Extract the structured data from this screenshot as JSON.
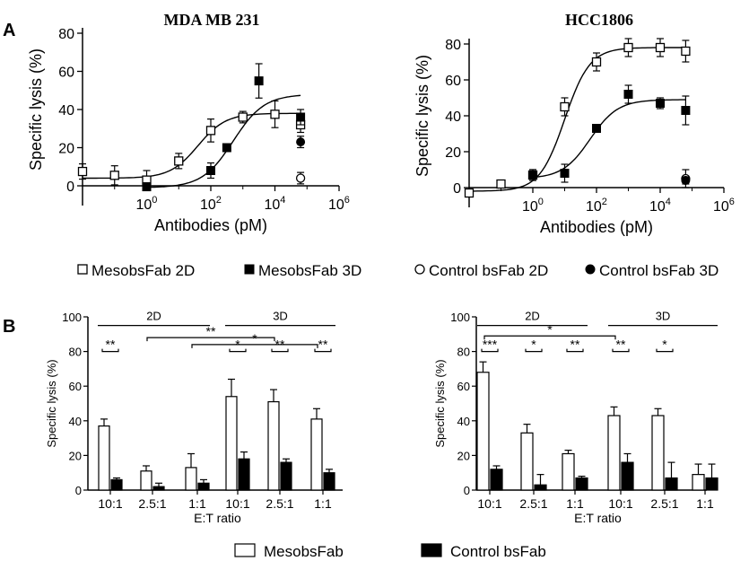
{
  "panel_labels": {
    "a": "A",
    "b": "B"
  },
  "chart_data": [
    {
      "id": "A-left",
      "type": "scatter",
      "title": "MDA MB 231",
      "xlabel": "Antibodies (pM)",
      "ylabel": "Specific lysis (%)",
      "xscale": "log10",
      "xlim": [
        -2,
        6
      ],
      "ylim": [
        0,
        80
      ],
      "xticks": [
        {
          "v": 0,
          "e": "0"
        },
        {
          "v": 2,
          "e": "2"
        },
        {
          "v": 4,
          "e": "4"
        },
        {
          "v": 6,
          "e": "6"
        }
      ],
      "xtick_base": "10",
      "yticks": [
        0,
        20,
        40,
        60,
        80
      ],
      "series": [
        {
          "name": "MesobsFab 2D",
          "marker": "open-square",
          "x": [
            -2,
            -1,
            0,
            1,
            2,
            3,
            4,
            4.8
          ],
          "y": [
            7.5,
            5.5,
            3,
            13,
            29,
            36,
            37.5,
            32
          ],
          "err": [
            4,
            5,
            5,
            4,
            6,
            3,
            7,
            4
          ],
          "fit": {
            "bottom": 4,
            "top": 38,
            "logec50": 1.6,
            "hill": 1.0,
            "from": -2,
            "to": 4.8
          }
        },
        {
          "name": "MesobsFab 3D",
          "marker": "filled-square",
          "x": [
            0,
            2,
            2.5,
            3.5,
            4.8
          ],
          "y": [
            -0.5,
            8,
            20,
            55,
            36
          ],
          "err": [
            2,
            4,
            2,
            9,
            4
          ],
          "fit": {
            "bottom": -1,
            "top": 48,
            "logec50": 2.7,
            "hill": 0.9,
            "from": 0,
            "to": 4.8
          }
        },
        {
          "name": "Control bsFab 2D",
          "marker": "open-circle",
          "x": [
            4.8
          ],
          "y": [
            4
          ],
          "err": [
            3
          ],
          "fit": null
        },
        {
          "name": "Control bsFab 3D",
          "marker": "filled-circle",
          "x": [
            4.8
          ],
          "y": [
            23
          ],
          "err": [
            3
          ],
          "fit": null
        }
      ]
    },
    {
      "id": "A-right",
      "type": "scatter",
      "title": "HCC1806",
      "xlabel": "Antibodies (pM)",
      "ylabel": "Specific lysis (%)",
      "xscale": "log10",
      "xlim": [
        -2,
        6
      ],
      "ylim": [
        0,
        80
      ],
      "xticks": [
        {
          "v": 0,
          "e": "0"
        },
        {
          "v": 2,
          "e": "2"
        },
        {
          "v": 4,
          "e": "4"
        },
        {
          "v": 6,
          "e": "6"
        }
      ],
      "xtick_base": "10",
      "yticks": [
        0,
        20,
        40,
        60,
        80
      ],
      "series": [
        {
          "name": "MesobsFab 2D",
          "marker": "open-square",
          "x": [
            -2,
            -1,
            0,
            1,
            2,
            3,
            4,
            4.8
          ],
          "y": [
            -3,
            2,
            7,
            45,
            70,
            78,
            78,
            76
          ],
          "err": [
            2,
            2,
            3,
            5,
            5,
            5,
            5,
            6
          ],
          "fit": {
            "bottom": -2,
            "top": 78,
            "logec50": 1.0,
            "hill": 1.1,
            "from": -2,
            "to": 4.8
          }
        },
        {
          "name": "MesobsFab 3D",
          "marker": "filled-square",
          "x": [
            0,
            1,
            2,
            3,
            4,
            4.8
          ],
          "y": [
            7,
            8,
            33,
            52,
            47,
            43
          ],
          "err": [
            3,
            5,
            2,
            5,
            3,
            8
          ],
          "fit": {
            "bottom": 5,
            "top": 49,
            "logec50": 1.8,
            "hill": 1.0,
            "from": 0,
            "to": 4.8
          }
        },
        {
          "name": "Control bsFab 2D",
          "marker": "open-circle",
          "x": [
            4.8
          ],
          "y": [
            5
          ],
          "err": [
            5
          ],
          "fit": null
        },
        {
          "name": "Control bsFab 3D",
          "marker": "filled-circle",
          "x": [
            4.8
          ],
          "y": [
            4
          ],
          "err": [
            2
          ],
          "fit": null
        }
      ]
    },
    {
      "id": "B-left",
      "type": "bar",
      "ylabel": "Specific lysis (%)",
      "xlabel": "E:T ratio",
      "ylim": [
        0,
        100
      ],
      "yticks": [
        0,
        20,
        40,
        60,
        80,
        100
      ],
      "categories": [
        "10:1",
        "2.5:1",
        "1:1",
        "10:1",
        "2.5:1",
        "1:1"
      ],
      "groups": [
        {
          "label": "2D",
          "from": 0,
          "to": 2
        },
        {
          "label": "3D",
          "from": 3,
          "to": 5
        }
      ],
      "series": [
        {
          "name": "MesobsFab",
          "fill": "open",
          "values": [
            37,
            11,
            13,
            54,
            51,
            41
          ],
          "err": [
            4,
            3,
            8,
            10,
            7,
            6
          ]
        },
        {
          "name": "Control bsFab",
          "fill": "filled",
          "values": [
            6,
            2,
            4,
            18,
            16,
            10
          ],
          "err": [
            1,
            2,
            2,
            4,
            2,
            2
          ]
        }
      ],
      "sig_within": [
        {
          "cat": 0,
          "label": "**",
          "y": 80
        },
        {
          "cat": 3,
          "label": "*",
          "y": 80
        },
        {
          "cat": 4,
          "label": "**",
          "y": 80
        },
        {
          "cat": 5,
          "label": "**",
          "y": 80
        }
      ],
      "sig_between": [
        {
          "from": 1,
          "to": 4,
          "label": "**",
          "y": 88
        },
        {
          "from": 2,
          "to": 5,
          "label": "*",
          "y": 84
        }
      ]
    },
    {
      "id": "B-right",
      "type": "bar",
      "ylabel": "Specific lysis (%)",
      "xlabel": "E:T ratio",
      "ylim": [
        0,
        100
      ],
      "yticks": [
        0,
        20,
        40,
        60,
        80,
        100
      ],
      "categories": [
        "10:1",
        "2.5:1",
        "1:1",
        "10:1",
        "2.5:1",
        "1:1"
      ],
      "groups": [
        {
          "label": "2D",
          "from": 0,
          "to": 2
        },
        {
          "label": "3D",
          "from": 3,
          "to": 5
        }
      ],
      "series": [
        {
          "name": "MesobsFab",
          "fill": "open",
          "values": [
            68,
            33,
            21,
            43,
            43,
            9
          ],
          "err": [
            6,
            5,
            2,
            5,
            4,
            6
          ]
        },
        {
          "name": "Control bsFab",
          "fill": "filled",
          "values": [
            12,
            3,
            7,
            16,
            7,
            7
          ],
          "err": [
            2,
            6,
            1,
            5,
            9,
            8
          ]
        }
      ],
      "sig_within": [
        {
          "cat": 0,
          "label": "***",
          "y": 80
        },
        {
          "cat": 1,
          "label": "*",
          "y": 80
        },
        {
          "cat": 2,
          "label": "**",
          "y": 80
        },
        {
          "cat": 3,
          "label": "**",
          "y": 80
        },
        {
          "cat": 4,
          "label": "*",
          "y": 80
        }
      ],
      "sig_between": [
        {
          "from": 0,
          "to": 3,
          "label": "*",
          "y": 89
        }
      ]
    }
  ],
  "legend_a": [
    {
      "marker": "open-square",
      "label": "MesobsFab 2D"
    },
    {
      "marker": "filled-square",
      "label": "MesobsFab 3D"
    },
    {
      "marker": "open-circle",
      "label": "Control bsFab 2D"
    },
    {
      "marker": "filled-circle",
      "label": "Control bsFab 3D"
    }
  ],
  "legend_b": [
    {
      "fill": "open",
      "label": "MesobsFab"
    },
    {
      "fill": "filled",
      "label": "Control bsFab"
    }
  ]
}
